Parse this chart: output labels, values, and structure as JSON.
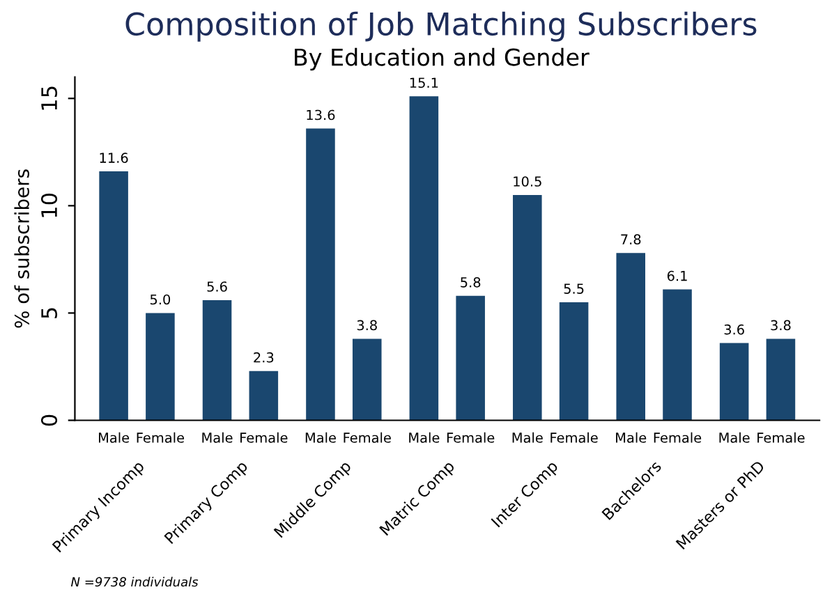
{
  "chart_data": {
    "type": "bar",
    "title": "Composition of Job Matching Subscribers",
    "subtitle": "By Education and Gender",
    "ylabel": "% of subscribers",
    "categories": [
      "Primary Incomp",
      "Primary Comp",
      "Middle Comp",
      "Matric Comp",
      "Inter Comp",
      "Bachelors",
      "Masters or PhD"
    ],
    "series": [
      {
        "name": "Male",
        "color": "#1a476f",
        "values": [
          11.6,
          5.6,
          13.6,
          15.1,
          10.5,
          7.8,
          3.6
        ],
        "value_labels": [
          "11.6",
          "5.6",
          "13.6",
          "15.1",
          "10.5",
          "7.8",
          "3.6"
        ]
      },
      {
        "name": "Female",
        "color": "#1a476f",
        "values": [
          5.0,
          2.3,
          3.8,
          5.8,
          5.5,
          6.1,
          3.8
        ],
        "value_labels": [
          "5.0",
          "2.3",
          "3.8",
          "5.8",
          "5.5",
          "6.1",
          "3.8"
        ]
      }
    ],
    "ylim": [
      0,
      16
    ],
    "yticks": [
      0,
      5,
      10,
      15
    ],
    "grid": false,
    "legend": false,
    "annotations": [
      "N =9738 individuals"
    ]
  }
}
